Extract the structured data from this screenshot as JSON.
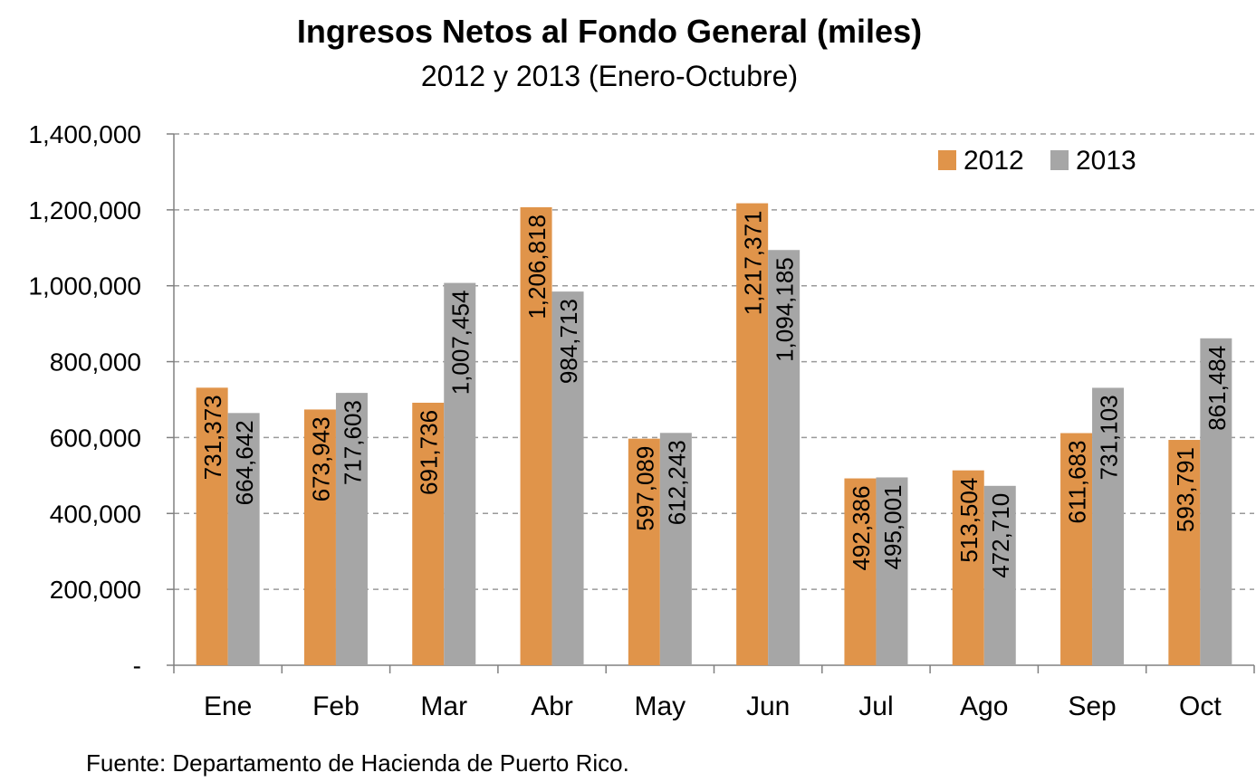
{
  "chart_data": {
    "type": "bar",
    "title": "Ingresos Netos al Fondo General (miles)",
    "subtitle": "2012 y 2013 (Enero-Octubre)",
    "categories": [
      "Ene",
      "Feb",
      "Mar",
      "Abr",
      "May",
      "Jun",
      "Jul",
      "Ago",
      "Sep",
      "Oct"
    ],
    "series": [
      {
        "name": "2012",
        "color": "#E0944A",
        "values": [
          731373,
          673943,
          691736,
          1206818,
          597089,
          1217371,
          492386,
          513504,
          611683,
          593791
        ],
        "labels": [
          "731,373",
          "673,943",
          "691,736",
          "1,206,818",
          "597,089",
          "1,217,371",
          "492,386",
          "513,504",
          "611,683",
          "593,791"
        ]
      },
      {
        "name": "2013",
        "color": "#A6A6A6",
        "values": [
          664642,
          717603,
          1007454,
          984713,
          612243,
          1094185,
          495001,
          472710,
          731103,
          861484
        ],
        "labels": [
          "664,642",
          "717,603",
          "1,007,454",
          "984,713",
          "612,243",
          "1,094,185",
          "495,001",
          "472,710",
          "731,103",
          "861,484"
        ]
      }
    ],
    "ylim": [
      0,
      1400000
    ],
    "yticks": [
      0,
      200000,
      400000,
      600000,
      800000,
      1000000,
      1200000,
      1400000
    ],
    "ytick_labels": [
      "-",
      "200,000",
      "400,000",
      "600,000",
      "800,000",
      "1,000,000",
      "1,200,000",
      "1,400,000"
    ],
    "grid": true,
    "legend_position": "top-right",
    "source": "Fuente: Departamento de Hacienda de Puerto Rico."
  }
}
